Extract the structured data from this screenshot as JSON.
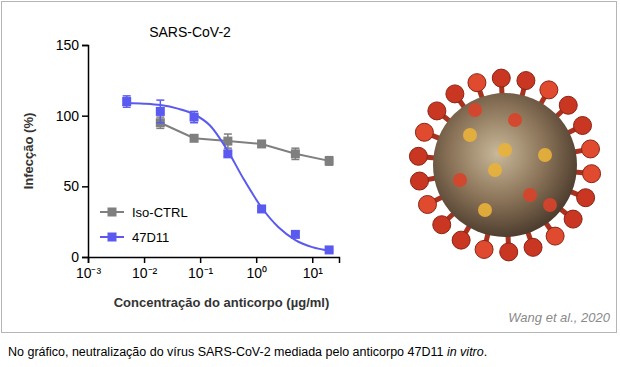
{
  "chart_data": {
    "type": "line",
    "title": "SARS-CoV-2",
    "x_label": "Concentração do anticorpo (µg/ml)",
    "y_label": "Infecção (%)",
    "log": "x",
    "grid": false,
    "legend": "lower left",
    "xlim": [
      0.001,
      30
    ],
    "xticks": [
      {
        "value": 0.001,
        "label": "10⁻³"
      },
      {
        "value": 0.01,
        "label": "10⁻²"
      },
      {
        "value": 0.1,
        "label": "10⁻¹"
      },
      {
        "value": 1,
        "label": "10⁰"
      },
      {
        "value": 10,
        "label": "10¹"
      }
    ],
    "ylim": [
      0,
      150
    ],
    "yticks": [
      0,
      50,
      100,
      150
    ],
    "series": [
      {
        "name": "Iso-CTRL",
        "type": "line",
        "marker": "square",
        "color": "#7f7f7f",
        "x": [
          0.0195,
          0.078,
          0.3125,
          1.25,
          5,
          20
        ],
        "values": [
          95,
          84,
          82,
          80,
          73,
          68
        ],
        "errors": [
          4,
          2,
          5,
          2,
          4,
          3
        ]
      },
      {
        "name": "47D11",
        "type": "scatter",
        "marker": "square",
        "color": "#5a5af0",
        "x": [
          0.0049,
          0.0195,
          0.078,
          0.3125,
          1.25,
          5,
          20
        ],
        "values": [
          110,
          103,
          99,
          73,
          34,
          16,
          5
        ],
        "errors": [
          4,
          8,
          4,
          2,
          2,
          2,
          1
        ],
        "fit_x": [
          0.0049,
          0.01,
          0.0195,
          0.04,
          0.078,
          0.15,
          0.3125,
          0.6,
          1.25,
          2.5,
          5,
          10,
          20
        ],
        "fit_values": [
          109,
          108.5,
          107.5,
          105,
          101,
          93,
          75,
          55,
          35,
          21,
          12,
          7,
          4.5
        ]
      }
    ]
  },
  "source": "Wang et al., 2020",
  "caption": [
    {
      "text": "No gráfico, neutralização do vírus SARS-CoV-2 mediada pelo anticorpo 47D11 ",
      "style": "normal"
    },
    {
      "text": "in vitro",
      "style": "italic"
    },
    {
      "text": ".",
      "style": "normal"
    }
  ]
}
